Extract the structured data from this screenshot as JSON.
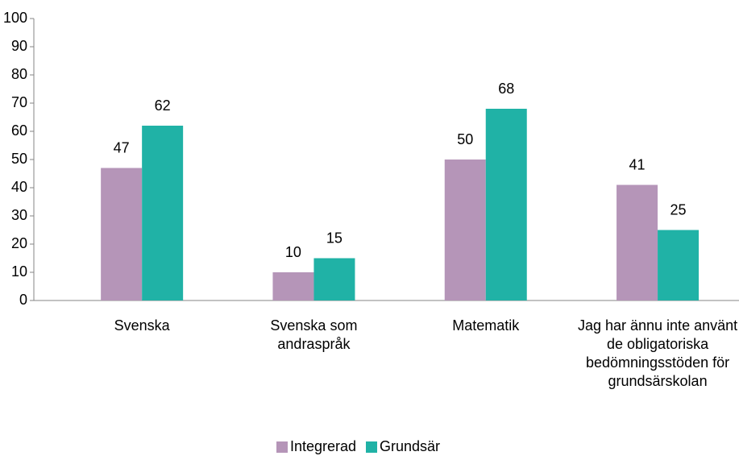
{
  "chart_data": {
    "type": "bar",
    "categories": [
      "Svenska",
      "Svenska som andraspråk",
      "Matematik",
      "Jag har ännu inte använt de obligatoriska bedömningsstöden för grundsärskolan"
    ],
    "series": [
      {
        "name": "Integrerad",
        "color": "#b595b8",
        "values": [
          47,
          10,
          50,
          41
        ]
      },
      {
        "name": "Grundsär",
        "color": "#20b2a6",
        "values": [
          62,
          15,
          68,
          25
        ]
      }
    ],
    "ylim": [
      0,
      100
    ],
    "yticks": [
      0,
      10,
      20,
      30,
      40,
      50,
      60,
      70,
      80,
      90,
      100
    ],
    "legend": "bottom"
  }
}
